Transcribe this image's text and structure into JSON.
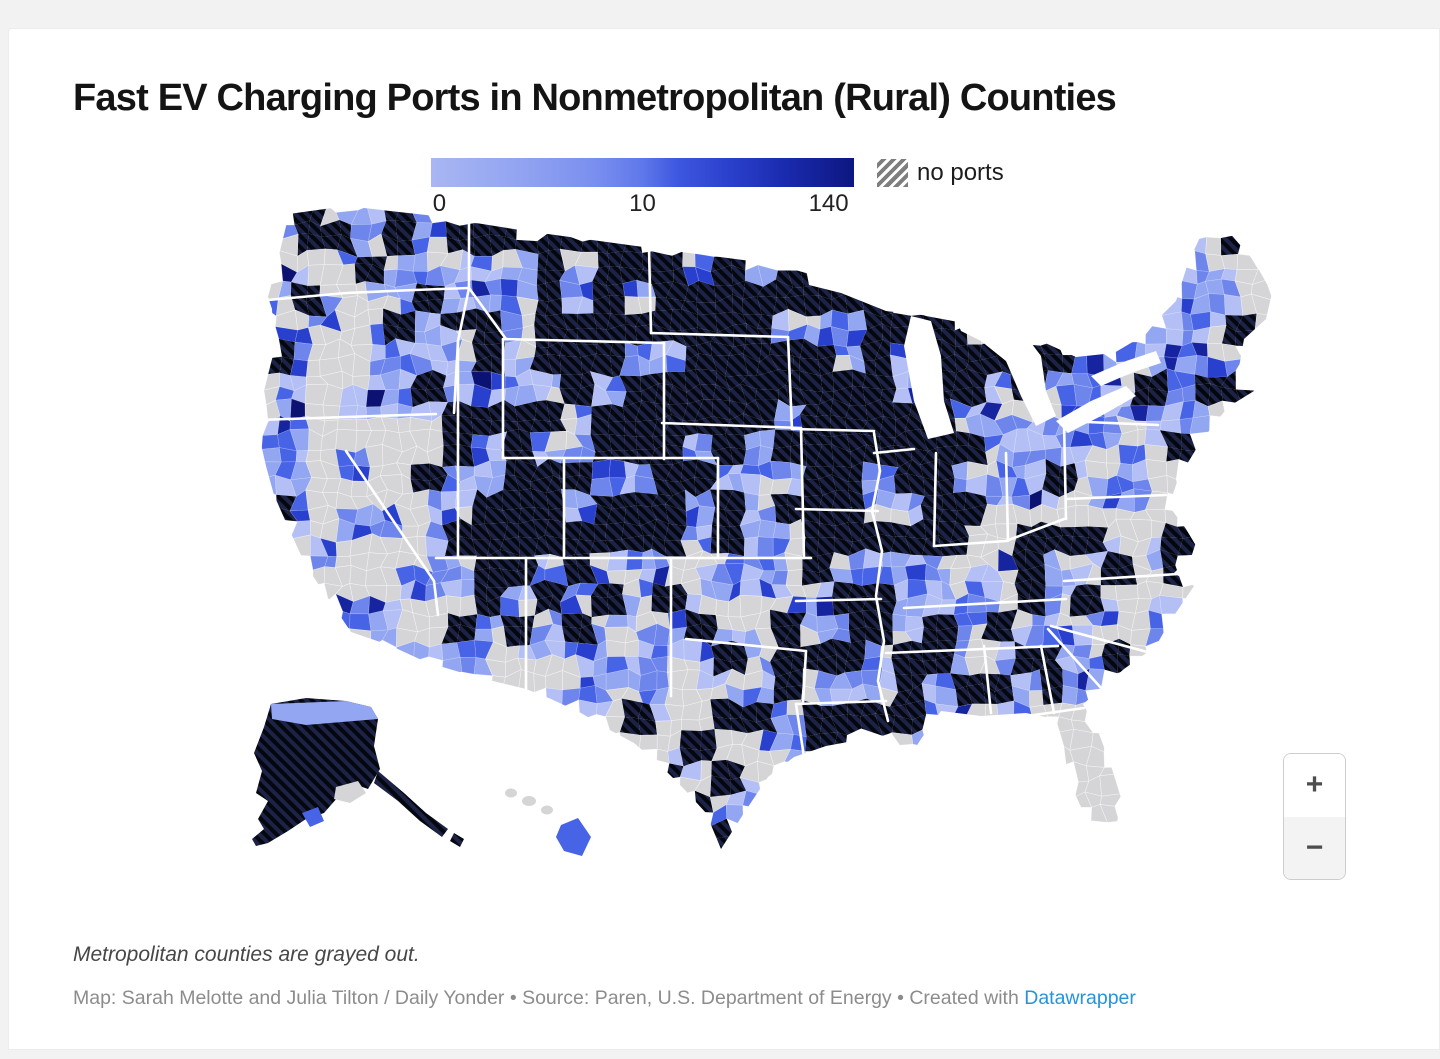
{
  "title": "Fast EV Charging Ports in Nonmetropolitan (Rural) Counties",
  "legend": {
    "min": "0",
    "mid": "10",
    "max": "140",
    "no_ports_label": "no ports",
    "scale_min_color": "#a9b6f3",
    "scale_max_color": "#0d1781"
  },
  "map": {
    "metro_note_color": "#d5d5d7",
    "palette": {
      "gray": "#d5d5d7",
      "blues": [
        "#b4c0f5",
        "#93a6f1",
        "#6e86ec",
        "#4763e6",
        "#2840cd",
        "#16259f",
        "#0c1272"
      ],
      "hatch_base": "#1c2347",
      "hatch_stripe": "#05070f",
      "state_border": "#ffffff",
      "water": "#ffffff"
    }
  },
  "zoom_controls": {
    "zoom_in": "+",
    "zoom_out": "−"
  },
  "footnote": "Metropolitan counties are grayed out.",
  "credits": {
    "text": "Map: Sarah Melotte and Julia Tilton / Daily Yonder • Source: Paren, U.S. Department of Energy • Created with ",
    "link_label": "Datawrapper"
  }
}
